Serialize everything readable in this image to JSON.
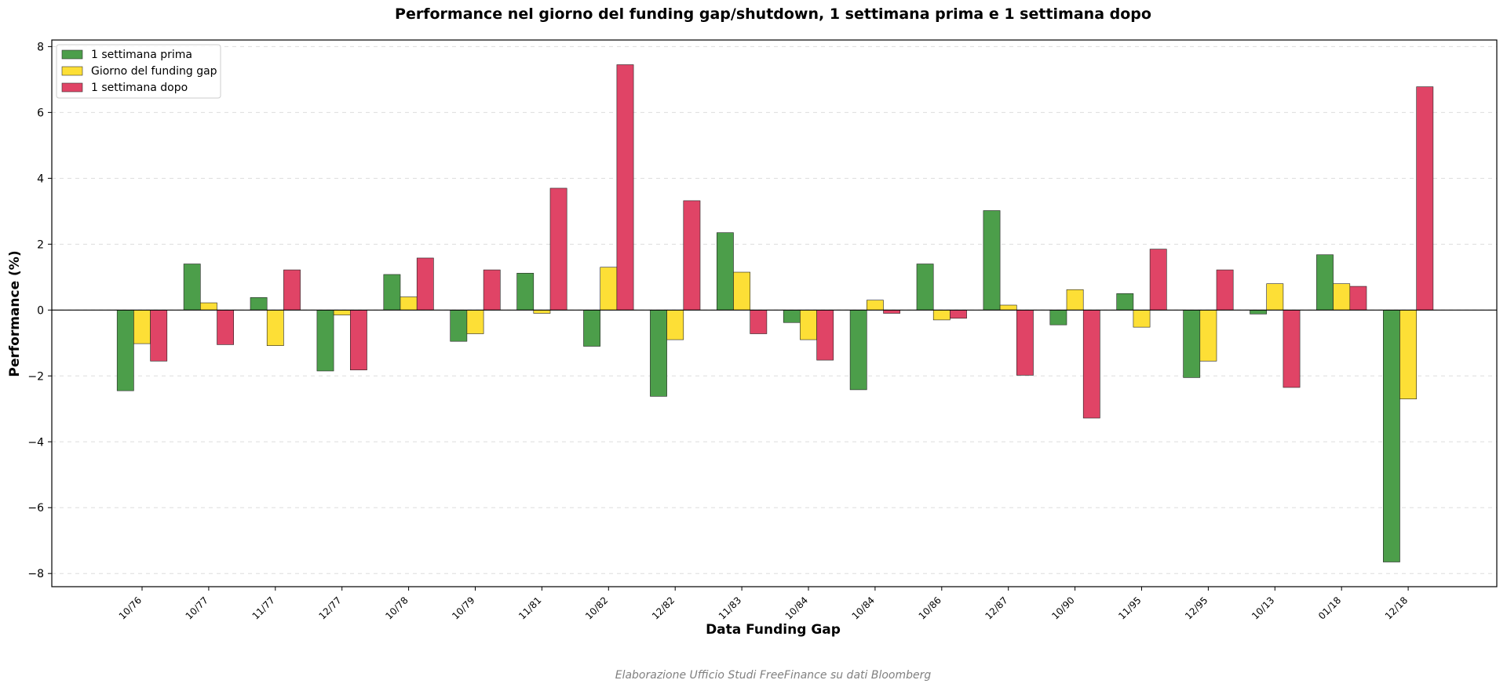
{
  "chart_data": {
    "type": "bar",
    "title": "Performance nel giorno del funding gap/shutdown, 1 settimana prima e 1 settimana dopo",
    "xlabel": "Data Funding Gap",
    "ylabel": "Performance (%)",
    "ylim": [
      -8.4,
      8.2
    ],
    "yticks": [
      -8,
      -6,
      -4,
      -2,
      0,
      2,
      4,
      6,
      8
    ],
    "grid": true,
    "legend_position": "top-left",
    "categories": [
      "10/76",
      "10/77",
      "11/77",
      "12/77",
      "10/78",
      "10/79",
      "11/81",
      "10/82",
      "12/82",
      "11/83",
      "10/84",
      "10/84",
      "10/86",
      "12/87",
      "10/90",
      "11/95",
      "12/95",
      "10/13",
      "01/18",
      "12/18"
    ],
    "series": [
      {
        "name": "1 settimana prima",
        "color": "#4c9e4a",
        "values": [
          -2.45,
          1.4,
          0.38,
          -1.85,
          1.08,
          -0.95,
          1.12,
          -1.1,
          -2.62,
          2.35,
          -0.38,
          -2.42,
          1.4,
          3.02,
          -0.45,
          0.5,
          -2.05,
          -0.12,
          1.68,
          -7.65
        ]
      },
      {
        "name": "Giorno del funding gap",
        "color": "#fddf36",
        "values": [
          -1.02,
          0.22,
          -1.08,
          -0.15,
          0.4,
          -0.72,
          -0.1,
          1.3,
          -0.9,
          1.15,
          -0.9,
          0.3,
          -0.3,
          0.15,
          0.62,
          -0.52,
          -1.55,
          0.8,
          0.8,
          -2.7
        ]
      },
      {
        "name": "1 settimana dopo",
        "color": "#e04466",
        "values": [
          -1.55,
          -1.05,
          1.22,
          -1.82,
          1.58,
          1.22,
          3.7,
          7.45,
          3.32,
          -0.72,
          -1.52,
          -0.1,
          -0.25,
          -1.98,
          -3.28,
          1.85,
          1.22,
          -2.35,
          0.72,
          6.78
        ]
      }
    ],
    "source_note": "Elaborazione Ufficio Studi FreeFinance su dati Bloomberg"
  }
}
